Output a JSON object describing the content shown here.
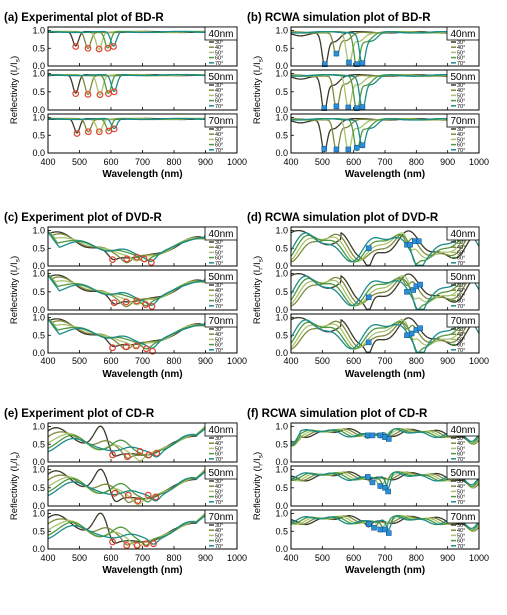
{
  "colors": {
    "30": "#3a3a2a",
    "40": "#7f8a3c",
    "50": "#a9c46f",
    "60": "#4f9a3e",
    "70": "#1a8c8a",
    "marker_exp": "#e0412c",
    "marker_sim": "#2a8fd8"
  },
  "axis": {
    "xlabel": "Wavelength (nm)",
    "ylabel_main": "Reflectivity (I",
    "ylabel_sub1": "r",
    "ylabel_mid": "/I",
    "ylabel_sub2": "s",
    "ylabel_end": ")",
    "xticks": [
      "400",
      "500",
      "600",
      "700",
      "800",
      "900",
      "1000"
    ],
    "yticks": [
      "0.0",
      "0.5",
      "1.0"
    ]
  },
  "legend": [
    "30°",
    "40°",
    "50°",
    "60°",
    "70°"
  ],
  "thickness_tags": [
    "40nm",
    "50nm",
    "70nm"
  ],
  "chart_data": [
    {
      "type": "line",
      "title": "(a) Experimental plot of BD-R",
      "kind": "bd_exp",
      "xlim": [
        400,
        1000
      ],
      "ylim": [
        0,
        1.1
      ],
      "series_angles": [
        "30°",
        "40°",
        "50°",
        "60°",
        "70°"
      ],
      "panels": [
        {
          "tag": "40nm",
          "dips": [
            {
              "angle": "30°",
              "x": 488,
              "y": 0.55
            },
            {
              "angle": "40°",
              "x": 527,
              "y": 0.5
            },
            {
              "angle": "50°",
              "x": 562,
              "y": 0.48
            },
            {
              "angle": "60°",
              "x": 590,
              "y": 0.5
            },
            {
              "angle": "70°",
              "x": 608,
              "y": 0.55
            }
          ]
        },
        {
          "tag": "50nm",
          "dips": [
            {
              "angle": "30°",
              "x": 488,
              "y": 0.45
            },
            {
              "angle": "40°",
              "x": 527,
              "y": 0.43
            },
            {
              "angle": "50°",
              "x": 565,
              "y": 0.42
            },
            {
              "angle": "60°",
              "x": 592,
              "y": 0.45
            },
            {
              "angle": "70°",
              "x": 610,
              "y": 0.5
            }
          ]
        },
        {
          "tag": "70nm",
          "dips": [
            {
              "angle": "30°",
              "x": 492,
              "y": 0.55
            },
            {
              "angle": "40°",
              "x": 528,
              "y": 0.6
            },
            {
              "angle": "50°",
              "x": 563,
              "y": 0.6
            },
            {
              "angle": "60°",
              "x": 593,
              "y": 0.62
            },
            {
              "angle": "70°",
              "x": 610,
              "y": 0.68
            }
          ]
        }
      ]
    },
    {
      "type": "line",
      "title": "(b) RCWA simulation plot of BD-R",
      "kind": "bd_sim",
      "xlim": [
        400,
        1000
      ],
      "ylim": [
        0,
        1.1
      ],
      "series_angles": [
        "30°",
        "40°",
        "50°",
        "60°",
        "70°"
      ],
      "panels": [
        {
          "tag": "40nm",
          "dips": [
            {
              "angle": "30°",
              "x": 508,
              "y": 0.05
            },
            {
              "angle": "40°",
              "x": 545,
              "y": 0.35
            },
            {
              "angle": "50°",
              "x": 585,
              "y": 0.1
            },
            {
              "angle": "60°",
              "x": 610,
              "y": 0.05
            },
            {
              "angle": "70°",
              "x": 628,
              "y": 0.08
            }
          ]
        },
        {
          "tag": "50nm",
          "dips": [
            {
              "angle": "30°",
              "x": 506,
              "y": 0.05
            },
            {
              "angle": "40°",
              "x": 545,
              "y": 0.1
            },
            {
              "angle": "50°",
              "x": 583,
              "y": 0.07
            },
            {
              "angle": "60°",
              "x": 610,
              "y": 0.05
            },
            {
              "angle": "70°",
              "x": 628,
              "y": 0.08
            }
          ]
        },
        {
          "tag": "70nm",
          "dips": [
            {
              "angle": "30°",
              "x": 506,
              "y": 0.12
            },
            {
              "angle": "40°",
              "x": 545,
              "y": 0.1
            },
            {
              "angle": "50°",
              "x": 583,
              "y": 0.1
            },
            {
              "angle": "60°",
              "x": 610,
              "y": 0.15
            },
            {
              "angle": "70°",
              "x": 628,
              "y": 0.22
            }
          ]
        }
      ]
    },
    {
      "type": "line",
      "title": "(c) Experiment plot of DVD-R",
      "kind": "dvd_exp",
      "xlim": [
        400,
        1000
      ],
      "ylim": [
        0,
        1.1
      ],
      "series_angles": [
        "30°",
        "40°",
        "50°",
        "60°",
        "70°"
      ],
      "panels": [
        {
          "tag": "40nm",
          "dips": [
            {
              "angle": "30°",
              "x": 605,
              "y": 0.18
            },
            {
              "angle": "40°",
              "x": 650,
              "y": 0.2
            },
            {
              "angle": "50°",
              "x": 682,
              "y": 0.25
            },
            {
              "angle": "60°",
              "x": 705,
              "y": 0.2
            },
            {
              "angle": "70°",
              "x": 728,
              "y": 0.1
            }
          ]
        },
        {
          "tag": "50nm",
          "dips": [
            {
              "angle": "30°",
              "x": 610,
              "y": 0.2
            },
            {
              "angle": "40°",
              "x": 648,
              "y": 0.22
            },
            {
              "angle": "50°",
              "x": 682,
              "y": 0.25
            },
            {
              "angle": "60°",
              "x": 710,
              "y": 0.15
            },
            {
              "angle": "70°",
              "x": 730,
              "y": 0.1
            }
          ]
        },
        {
          "tag": "70nm",
          "dips": [
            {
              "angle": "30°",
              "x": 605,
              "y": 0.15
            },
            {
              "angle": "40°",
              "x": 648,
              "y": 0.18
            },
            {
              "angle": "50°",
              "x": 680,
              "y": 0.2
            },
            {
              "angle": "60°",
              "x": 712,
              "y": 0.12
            },
            {
              "angle": "70°",
              "x": 732,
              "y": 0.05
            }
          ]
        }
      ]
    },
    {
      "type": "line",
      "title": "(d) RCWA simulation plot of DVD-R",
      "kind": "dvd_sim",
      "xlim": [
        400,
        1000
      ],
      "ylim": [
        0,
        1.1
      ],
      "series_angles": [
        "30°",
        "40°",
        "50°",
        "60°",
        "70°"
      ],
      "panels": [
        {
          "tag": "40nm",
          "dips": [
            {
              "angle": "30°",
              "x": 648,
              "y": 0.5
            },
            {
              "angle": "40°",
              "x": 770,
              "y": 0.6
            },
            {
              "angle": "50°",
              "x": 780,
              "y": 0.6
            },
            {
              "angle": "60°",
              "x": 795,
              "y": 0.7
            },
            {
              "angle": "70°",
              "x": 808,
              "y": 0.7
            }
          ]
        },
        {
          "tag": "50nm",
          "dips": [
            {
              "angle": "30°",
              "x": 648,
              "y": 0.35
            },
            {
              "angle": "40°",
              "x": 770,
              "y": 0.5
            },
            {
              "angle": "50°",
              "x": 790,
              "y": 0.55
            },
            {
              "angle": "60°",
              "x": 800,
              "y": 0.65
            },
            {
              "angle": "70°",
              "x": 812,
              "y": 0.7
            }
          ]
        },
        {
          "tag": "70nm",
          "dips": [
            {
              "angle": "30°",
              "x": 648,
              "y": 0.3
            },
            {
              "angle": "40°",
              "x": 770,
              "y": 0.5
            },
            {
              "angle": "50°",
              "x": 785,
              "y": 0.55
            },
            {
              "angle": "60°",
              "x": 800,
              "y": 0.65
            },
            {
              "angle": "70°",
              "x": 812,
              "y": 0.7
            }
          ]
        }
      ]
    },
    {
      "type": "line",
      "title": "(e) Experiment plot of CD-R",
      "kind": "cd_exp",
      "xlim": [
        400,
        1000
      ],
      "ylim": [
        0,
        1.1
      ],
      "series_angles": [
        "30°",
        "40°",
        "50°",
        "60°",
        "70°"
      ],
      "panels": [
        {
          "tag": "40nm",
          "dips": [
            {
              "angle": "30°",
              "x": 605,
              "y": 0.2
            },
            {
              "angle": "40°",
              "x": 652,
              "y": 0.15
            },
            {
              "angle": "50°",
              "x": 692,
              "y": 0.3
            },
            {
              "angle": "60°",
              "x": 720,
              "y": 0.2
            },
            {
              "angle": "70°",
              "x": 745,
              "y": 0.25
            }
          ]
        },
        {
          "tag": "50nm",
          "dips": [
            {
              "angle": "30°",
              "x": 612,
              "y": 0.35
            },
            {
              "angle": "40°",
              "x": 655,
              "y": 0.3
            },
            {
              "angle": "50°",
              "x": 685,
              "y": 0.15
            },
            {
              "angle": "60°",
              "x": 718,
              "y": 0.3
            },
            {
              "angle": "70°",
              "x": 742,
              "y": 0.25
            }
          ]
        },
        {
          "tag": "70nm",
          "dips": [
            {
              "angle": "30°",
              "x": 605,
              "y": 0.2
            },
            {
              "angle": "40°",
              "x": 650,
              "y": 0.1
            },
            {
              "angle": "50°",
              "x": 683,
              "y": 0.1
            },
            {
              "angle": "60°",
              "x": 712,
              "y": 0.15
            },
            {
              "angle": "70°",
              "x": 735,
              "y": 0.15
            }
          ]
        }
      ]
    },
    {
      "type": "line",
      "title": "(f) RCWA simulation plot of CD-R",
      "kind": "cd_sim",
      "xlim": [
        400,
        1000
      ],
      "ylim": [
        0,
        1.1
      ],
      "series_angles": [
        "30°",
        "40°",
        "50°",
        "60°",
        "70°"
      ],
      "panels": [
        {
          "tag": "40nm",
          "dips": [
            {
              "angle": "30°",
              "x": 645,
              "y": 0.75
            },
            {
              "angle": "40°",
              "x": 660,
              "y": 0.75
            },
            {
              "angle": "50°",
              "x": 685,
              "y": 0.75
            },
            {
              "angle": "60°",
              "x": 700,
              "y": 0.7
            },
            {
              "angle": "70°",
              "x": 712,
              "y": 0.65
            }
          ]
        },
        {
          "tag": "50nm",
          "dips": [
            {
              "angle": "30°",
              "x": 645,
              "y": 0.8
            },
            {
              "angle": "40°",
              "x": 660,
              "y": 0.65
            },
            {
              "angle": "50°",
              "x": 685,
              "y": 0.55
            },
            {
              "angle": "60°",
              "x": 700,
              "y": 0.5
            },
            {
              "angle": "70°",
              "x": 710,
              "y": 0.4
            }
          ]
        },
        {
          "tag": "70nm",
          "dips": [
            {
              "angle": "30°",
              "x": 648,
              "y": 0.7
            },
            {
              "angle": "40°",
              "x": 665,
              "y": 0.6
            },
            {
              "angle": "50°",
              "x": 685,
              "y": 0.55
            },
            {
              "angle": "60°",
              "x": 700,
              "y": 0.55
            },
            {
              "angle": "70°",
              "x": 712,
              "y": 0.45
            }
          ]
        }
      ]
    }
  ]
}
